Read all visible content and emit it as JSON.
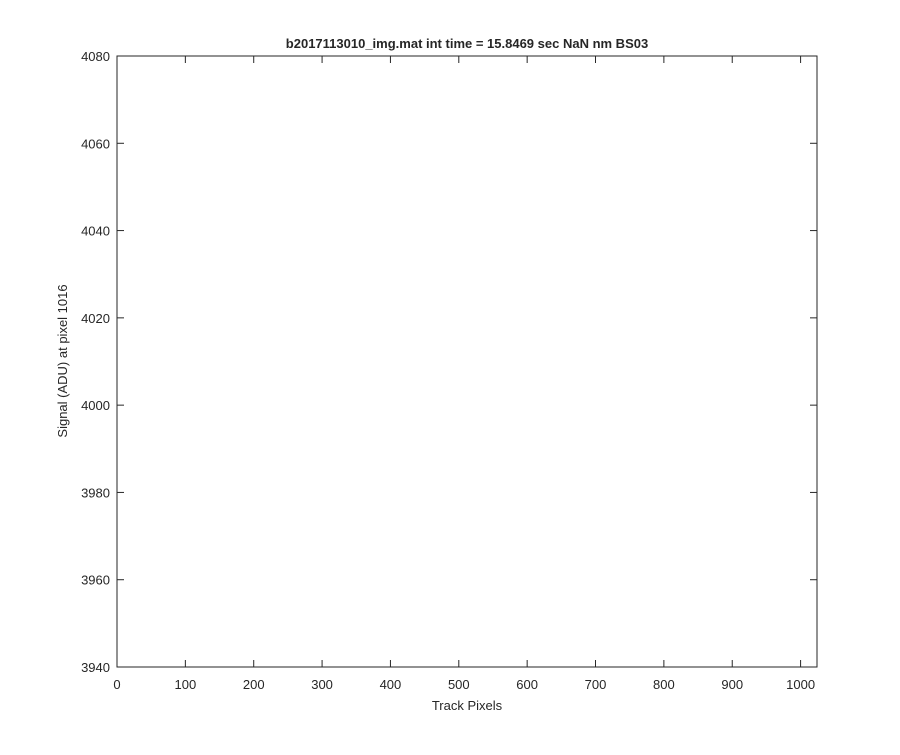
{
  "chart_data": {
    "type": "line",
    "title": "b2017113010_img.mat int time = 15.8469 sec  NaN nm BS03",
    "xlabel": "Track Pixels",
    "ylabel": "Signal (ADU) at pixel 1016",
    "xlim": [
      0,
      1024
    ],
    "ylim": [
      3940,
      4080
    ],
    "xticks": [
      0,
      100,
      200,
      300,
      400,
      500,
      600,
      700,
      800,
      900,
      1000
    ],
    "yticks": [
      3940,
      3960,
      3980,
      4000,
      4020,
      4040,
      4060,
      4080
    ],
    "grid": false,
    "legend": "none",
    "series": [
      {
        "color": "#0000ff",
        "x_start": 1,
        "x_step": 1,
        "note_values": "one value per track pixel, y in ADU",
        "values": []
      }
    ]
  }
}
